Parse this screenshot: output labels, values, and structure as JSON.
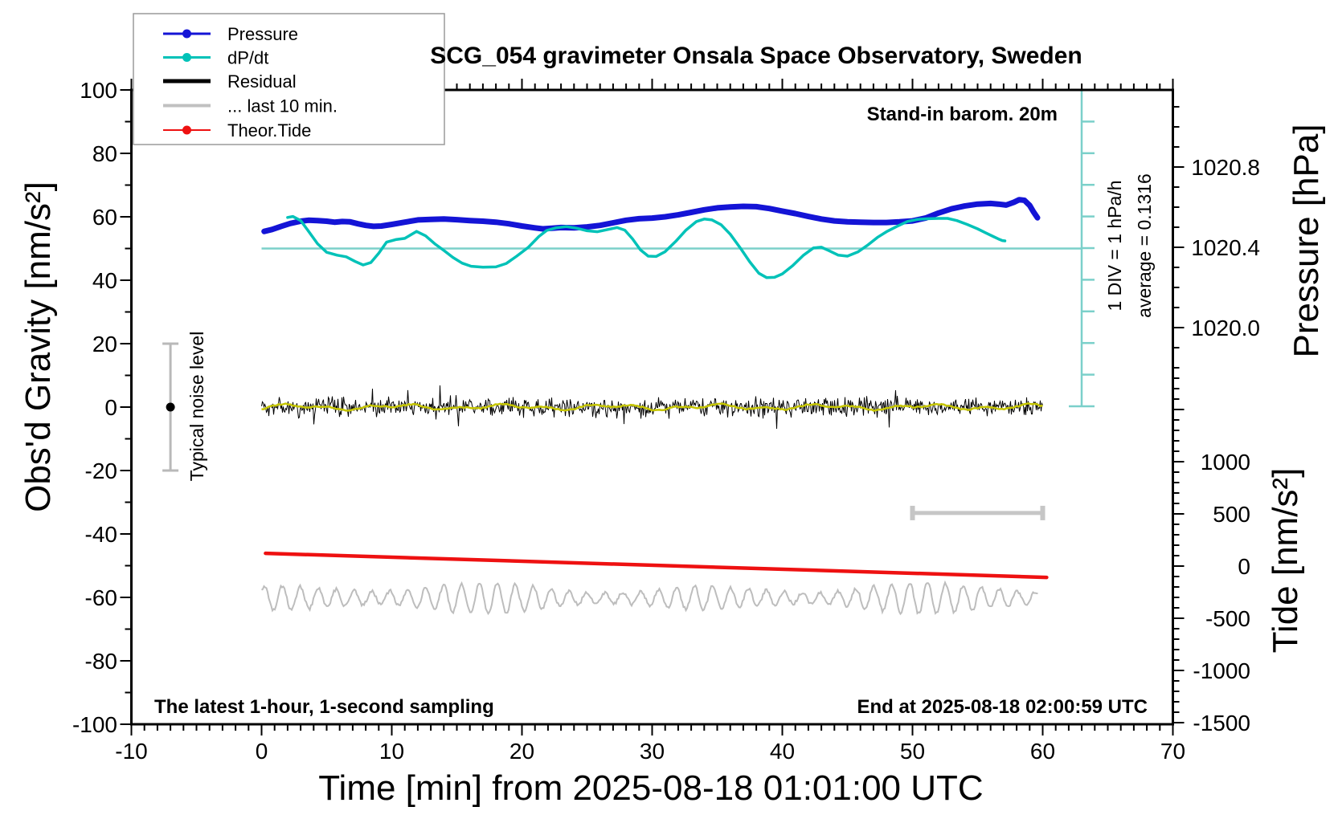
{
  "annotations": {
    "standin": "Stand-in barom. 20m",
    "div_label": "1 DIV = 1 hPa/h",
    "avg_label": "average = 0.1316",
    "noise_label": "Typical noise level",
    "latest": "The latest 1-hour, 1-second sampling",
    "end_at": "End at 2025-08-18 02:00:59 UTC"
  },
  "legend": {
    "entries": [
      {
        "label": "Pressure",
        "color": "#1414d6",
        "width": 3,
        "marker": true
      },
      {
        "label": "dP/dt",
        "color": "#00c2b8",
        "width": 3,
        "marker": true
      },
      {
        "label": "Residual",
        "color": "#000000",
        "width": 5,
        "marker": false
      },
      {
        "label": "... last 10 min.",
        "color": "#c0c0c0",
        "width": 4,
        "marker": false
      },
      {
        "label": "Theor.Tide",
        "color": "#ee1111",
        "width": 2,
        "marker": true
      }
    ]
  },
  "chart_data": {
    "type": "line",
    "title": "SCG_054 gravimeter Onsala Space Observatory, Sweden",
    "xlabel": "Time [min] from 2025-08-18 01:01:00 UTC",
    "ylabel_left": "Obs'd Gravity [nm/s²]",
    "ylabel_pressure": "Pressure [hPa]",
    "ylabel_tide": "Tide [nm/s²]",
    "x_range_min": [
      -10,
      70
    ],
    "y_left_range": [
      -100,
      100
    ],
    "x_ticks": [
      "-10",
      "0",
      "10",
      "20",
      "30",
      "40",
      "50",
      "60",
      "70"
    ],
    "y_left_ticks": [
      "100",
      "80",
      "60",
      "40",
      "20",
      "0",
      "-20",
      "-40",
      "-60",
      "-80",
      "-100"
    ],
    "pressure_ticks": [
      "1020.8",
      "1020.4",
      "1020.0"
    ],
    "tide_ticks": [
      "1000",
      "500",
      "0",
      "-500",
      "-1000",
      "-1500"
    ],
    "grid": false,
    "legend_position": "top-left",
    "scale_bar": {
      "color": "#7bd0ca",
      "divisions": 10,
      "div_meaning": "1 hPa/h",
      "average_dpdt_hpa_per_h": 0.1316,
      "average_line_gravity": 50
    },
    "noise_bar": {
      "x_min": -7,
      "center": 0,
      "half_range": 20,
      "label": "Typical noise level"
    },
    "last10_window_bar": {
      "t_start_min": 50,
      "t_end_min": 60,
      "gravity_level": -33.4
    },
    "series": [
      {
        "name": "... last 10 min.",
        "kind": "noise_osc",
        "color": "#bdbdbd",
        "width": 2,
        "center_gravity": -60.2,
        "amplitude_gravity_min": 1,
        "amplitude_gravity_max": 5.5,
        "t_range": [
          0,
          59.7
        ]
      },
      {
        "name": "Theor.Tide",
        "kind": "polyline",
        "color": "#ee1111",
        "width": 4.5,
        "units": "gravity-axis",
        "tide_start_nm_s2": 120,
        "tide_end_nm_s2": -110,
        "points": [
          [
            0.3,
            -46.1
          ],
          [
            60.3,
            -53.7
          ]
        ]
      },
      {
        "name": "Residual",
        "kind": "noise",
        "color": "#000000",
        "width": 1,
        "center_gravity": 0,
        "typical_amplitude": 2.5,
        "spike_amplitude": 7,
        "t_range": [
          0,
          60
        ]
      },
      {
        "name": "Residual smoothed",
        "kind": "smooth_wiggle",
        "color": "#c6c600",
        "width": 2.5,
        "center_gravity": 0,
        "amplitude_gravity": 0.8,
        "t_range": [
          0,
          60
        ]
      },
      {
        "name": "Pressure",
        "kind": "polyline",
        "color": "#1414d6",
        "width": 7,
        "units": "gravity-axis",
        "pressure_scale_note": "gravity 50 = 1020.4 hPa, 0.4 hPa per 25.3 gravity units",
        "points": [
          [
            0.2,
            55.4
          ],
          [
            0.8,
            56.0
          ],
          [
            1.5,
            57.0
          ],
          [
            2.2,
            57.9
          ],
          [
            3,
            58.6
          ],
          [
            3.6,
            58.9
          ],
          [
            4.3,
            58.8
          ],
          [
            5,
            58.6
          ],
          [
            5.6,
            58.3
          ],
          [
            6.2,
            58.5
          ],
          [
            6.8,
            58.4
          ],
          [
            7.4,
            57.8
          ],
          [
            8,
            57.3
          ],
          [
            8.6,
            57.0
          ],
          [
            9.2,
            57.1
          ],
          [
            10,
            57.6
          ],
          [
            11,
            58.3
          ],
          [
            12,
            59.0
          ],
          [
            13,
            59.2
          ],
          [
            14,
            59.3
          ],
          [
            15,
            59.1
          ],
          [
            16,
            58.8
          ],
          [
            17,
            58.6
          ],
          [
            18,
            58.3
          ],
          [
            19,
            57.8
          ],
          [
            20,
            57.1
          ],
          [
            21,
            56.5
          ],
          [
            21.6,
            56.2
          ],
          [
            22.3,
            56.4
          ],
          [
            23,
            56.6
          ],
          [
            24,
            56.5
          ],
          [
            25,
            56.8
          ],
          [
            26,
            57.3
          ],
          [
            27,
            58.1
          ],
          [
            28,
            58.9
          ],
          [
            29,
            59.4
          ],
          [
            30,
            59.6
          ],
          [
            31,
            60.0
          ],
          [
            32,
            60.6
          ],
          [
            33,
            61.4
          ],
          [
            34,
            62.2
          ],
          [
            35,
            62.8
          ],
          [
            36,
            63.1
          ],
          [
            37,
            63.3
          ],
          [
            38,
            63.2
          ],
          [
            39,
            62.6
          ],
          [
            40,
            61.8
          ],
          [
            41,
            61.0
          ],
          [
            42,
            60.1
          ],
          [
            43,
            59.3
          ],
          [
            44,
            58.7
          ],
          [
            45,
            58.4
          ],
          [
            46,
            58.3
          ],
          [
            47,
            58.2
          ],
          [
            48,
            58.2
          ],
          [
            49,
            58.4
          ],
          [
            50,
            58.7
          ],
          [
            51,
            59.6
          ],
          [
            52,
            61.2
          ],
          [
            53,
            62.5
          ],
          [
            54,
            63.4
          ],
          [
            55,
            64.0
          ],
          [
            56,
            64.2
          ],
          [
            56.6,
            64.0
          ],
          [
            57.2,
            63.7
          ],
          [
            57.8,
            64.6
          ],
          [
            58.2,
            65.4
          ],
          [
            58.6,
            65.2
          ],
          [
            59,
            63.6
          ],
          [
            59.3,
            61.5
          ],
          [
            59.6,
            59.7
          ]
        ]
      },
      {
        "name": "dP/dt",
        "kind": "polyline",
        "color": "#00c2b8",
        "width": 3.5,
        "units": "gravity-axis",
        "dpdt_scale_note": "gravity 50 = average 0.1316 hPa/h, 1 hPa/h per 10 gravity units",
        "points": [
          [
            2,
            59.8
          ],
          [
            2.4,
            60.1
          ],
          [
            3,
            58.8
          ],
          [
            3.6,
            55.5
          ],
          [
            4.3,
            51.5
          ],
          [
            5,
            48.8
          ],
          [
            5.8,
            47.9
          ],
          [
            6.5,
            47.4
          ],
          [
            7.2,
            45.9
          ],
          [
            7.8,
            44.8
          ],
          [
            8.4,
            45.6
          ],
          [
            9,
            48.5
          ],
          [
            9.6,
            52.0
          ],
          [
            10.3,
            52.8
          ],
          [
            11,
            53.2
          ],
          [
            11.9,
            55.4
          ],
          [
            12.6,
            54.0
          ],
          [
            13.3,
            51.5
          ],
          [
            14,
            49.4
          ],
          [
            14.7,
            47.2
          ],
          [
            15.4,
            45.4
          ],
          [
            16.1,
            44.4
          ],
          [
            17,
            44.1
          ],
          [
            18,
            44.2
          ],
          [
            18.8,
            45.3
          ],
          [
            19.6,
            47.6
          ],
          [
            20.5,
            50.4
          ],
          [
            21.3,
            53.8
          ],
          [
            21.9,
            55.7
          ],
          [
            22.6,
            56.5
          ],
          [
            23.4,
            56.9
          ],
          [
            24.2,
            56.4
          ],
          [
            25,
            55.6
          ],
          [
            25.8,
            55.3
          ],
          [
            26.6,
            56.0
          ],
          [
            27.3,
            56.6
          ],
          [
            27.9,
            55.8
          ],
          [
            28.5,
            53.0
          ],
          [
            29.1,
            49.6
          ],
          [
            29.7,
            47.6
          ],
          [
            30.3,
            47.5
          ],
          [
            31,
            49.0
          ],
          [
            31.8,
            52.2
          ],
          [
            32.6,
            55.8
          ],
          [
            33.4,
            58.5
          ],
          [
            34,
            59.3
          ],
          [
            34.6,
            59.0
          ],
          [
            35.3,
            57.5
          ],
          [
            36,
            54.5
          ],
          [
            36.8,
            50.0
          ],
          [
            37.5,
            45.8
          ],
          [
            38.2,
            42.2
          ],
          [
            38.8,
            40.8
          ],
          [
            39.4,
            40.9
          ],
          [
            40,
            42.0
          ],
          [
            40.8,
            44.6
          ],
          [
            41.6,
            47.8
          ],
          [
            42.4,
            50.2
          ],
          [
            43,
            50.4
          ],
          [
            43.6,
            49.3
          ],
          [
            44.3,
            47.9
          ],
          [
            45,
            47.6
          ],
          [
            45.8,
            48.9
          ],
          [
            46.6,
            51.2
          ],
          [
            47.3,
            53.5
          ],
          [
            48,
            55.3
          ],
          [
            48.8,
            57.0
          ],
          [
            49.6,
            58.5
          ],
          [
            50.4,
            59.2
          ],
          [
            51.2,
            59.4
          ],
          [
            52,
            59.5
          ],
          [
            52.7,
            59.5
          ],
          [
            53.4,
            58.8
          ],
          [
            54.2,
            57.6
          ],
          [
            55,
            56.2
          ],
          [
            55.6,
            55.0
          ],
          [
            56.2,
            53.8
          ],
          [
            56.6,
            53.0
          ],
          [
            56.9,
            52.5
          ],
          [
            57.1,
            52.4
          ]
        ]
      }
    ]
  }
}
